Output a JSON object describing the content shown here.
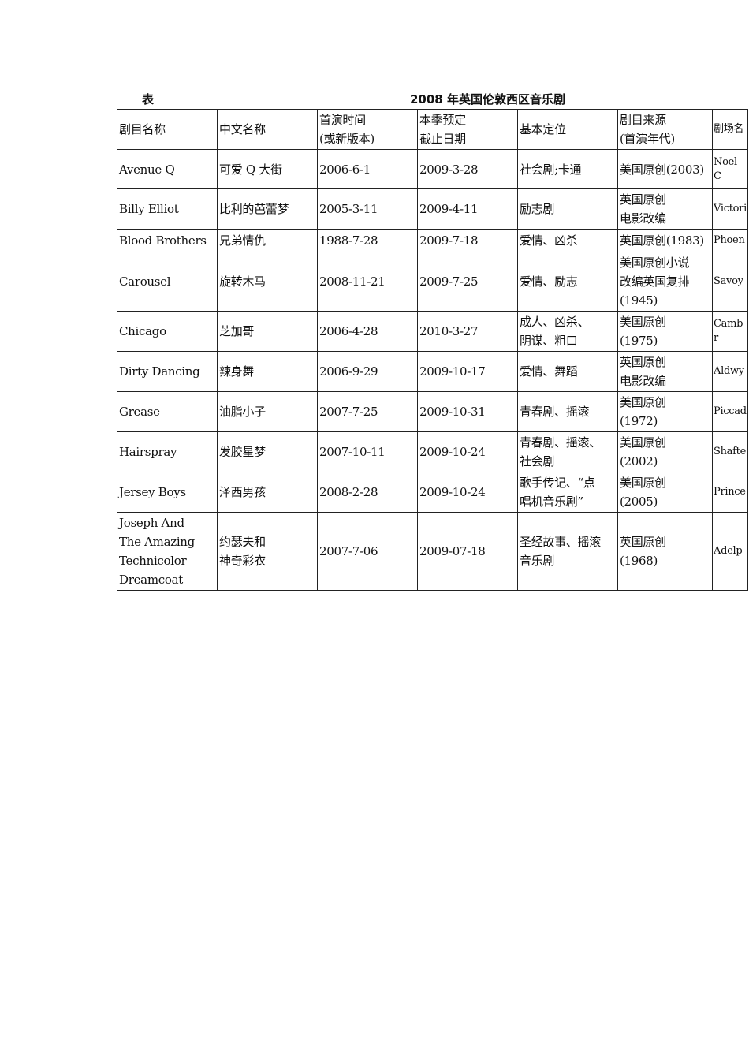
{
  "caption": {
    "label": "表",
    "title": "2008 年英国伦敦西区音乐剧"
  },
  "table": {
    "headers": [
      "剧目名称",
      "中文名称",
      "首演时间\n(或新版本)",
      "本季预定\n截止日期",
      "基本定位",
      "剧目来源\n(首演年代)",
      "剧场名"
    ],
    "rows": [
      [
        "Avenue Q",
        "可爱 Q 大街",
        "2006-6-1",
        "2009-3-28",
        "社会剧;卡通",
        "美国原创(2003)",
        "Noel C"
      ],
      [
        "Billy Elliot",
        "比利的芭蕾梦",
        "2005-3-11",
        "2009-4-11",
        "励志剧",
        "英国原创\n电影改编",
        "Victori"
      ],
      [
        "Blood Brothers",
        "兄弟情仇",
        "1988-7-28",
        "2009-7-18",
        "爱情、凶杀",
        "英国原创(1983)",
        "Phoen"
      ],
      [
        "Carousel",
        "旋转木马",
        "2008-11-21",
        "2009-7-25",
        "爱情、励志",
        "美国原创小说\n改编英国复排\n(1945)",
        "Savoy"
      ],
      [
        "Chicago",
        "芝加哥",
        "2006-4-28",
        "2010-3-27",
        "成人、凶杀、\n阴谋、粗口",
        "美国原创\n(1975)",
        "Cambr"
      ],
      [
        "Dirty Dancing",
        "辣身舞",
        "2006-9-29",
        "2009-10-17",
        "爱情、舞蹈",
        "英国原创\n电影改编",
        "Aldwy"
      ],
      [
        "Grease",
        "油脂小子",
        "2007-7-25",
        "2009-10-31",
        "青春剧、摇滚",
        "美国原创\n(1972)",
        "Piccad"
      ],
      [
        "Hairspray",
        "发胶星梦",
        "2007-10-11",
        "2009-10-24",
        "青春剧、摇滚、\n社会剧",
        "美国原创\n(2002)",
        "Shafte"
      ],
      [
        "Jersey Boys",
        "泽西男孩",
        "2008-2-28",
        "2009-10-24",
        "歌手传记、“点\n唱机音乐剧”",
        "美国原创\n(2005)",
        "Prince"
      ],
      [
        "Joseph And\nThe Amazing\nTechnicolor\nDreamcoat",
        "约瑟夫和\n神奇彩衣",
        "2007-7-06",
        "2009-07-18",
        "圣经故事、摇滚\n音乐剧",
        "英国原创\n(1968)",
        "Adelp"
      ]
    ]
  }
}
